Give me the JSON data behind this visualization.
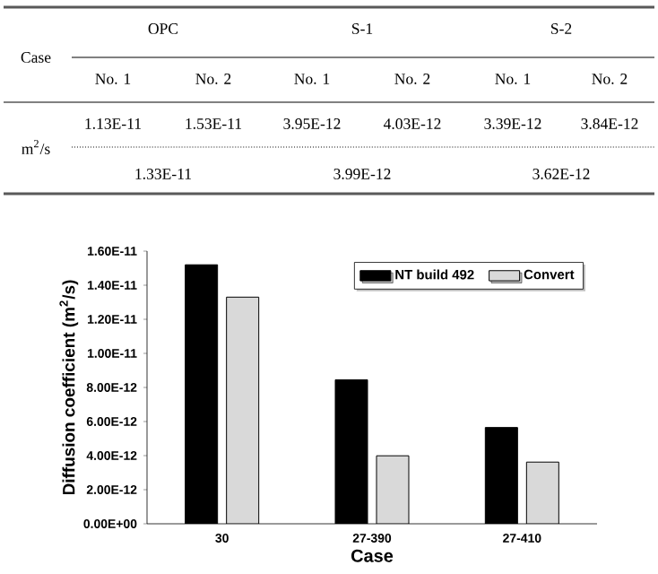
{
  "chart_data": [
    {
      "type": "other",
      "annotations": [
        "Case",
        "OPC",
        "S-1",
        "S-2",
        "No. 1",
        "No. 2",
        "No. 1",
        "No. 2",
        "No. 1",
        "No. 2",
        "m$^{2}$/s",
        "1.13E-11",
        "1.53E-11",
        "3.95E-12",
        "4.03E-12",
        "3.39E-12",
        "3.84E-12",
        "1.33E-11",
        "3.99E-12",
        "3.62E-12"
      ]
    },
    {
      "type": "bar",
      "categories": [
        "30",
        "27-390",
        "27-410"
      ],
      "xlabel": "Case",
      "ylabel": "Diffusion coefficient (m$^{2}$/s)",
      "series": [
        {
          "name": "NT build 492",
          "color": "#000000",
          "values": [
            1.52e-11,
            8.45e-12,
            5.65e-12
          ]
        },
        {
          "name": "Convert",
          "color": "#d9d9d9",
          "values": [
            1.33e-11,
            3.99e-12,
            3.62e-12
          ]
        }
      ],
      "ylim": [
        0,
        1.6e-11
      ],
      "yticks": [
        {
          "value": 0,
          "label": "0.00E+00"
        },
        {
          "value": 2e-12,
          "label": "2.00E-12"
        },
        {
          "value": 4e-12,
          "label": "4.00E-12"
        },
        {
          "value": 6e-12,
          "label": "6.00E-12"
        },
        {
          "value": 8e-12,
          "label": "8.00E-12"
        },
        {
          "value": 1e-11,
          "label": "1.00E-11"
        },
        {
          "value": 1.2e-11,
          "label": "1.20E-11"
        },
        {
          "value": 1.4e-11,
          "label": "1.40E-11"
        },
        {
          "value": 1.6e-11,
          "label": "1.60E-11"
        }
      ],
      "legend": "top right"
    }
  ]
}
